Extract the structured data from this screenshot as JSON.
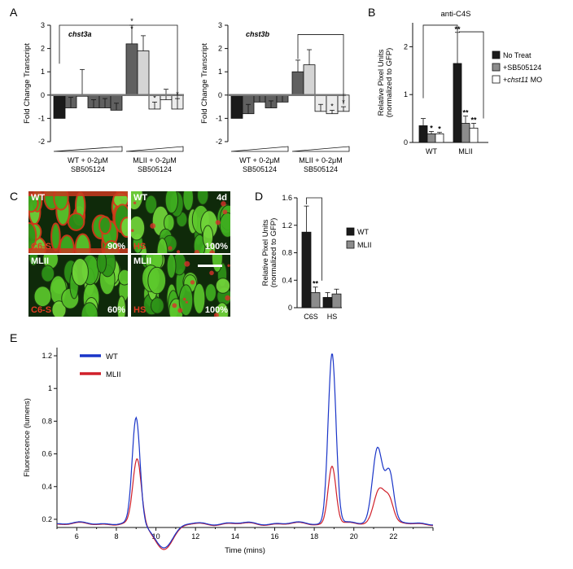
{
  "panel_letters": {
    "a": "A",
    "b": "B",
    "c": "C",
    "d": "D",
    "e": "E"
  },
  "colors": {
    "dark": "#1a1a1a",
    "mid": "#606060",
    "grey": "#8c8c8c",
    "light": "#d4d4d4",
    "lighter": "#ececec",
    "wt_line": "#1a35c8",
    "mlii_line": "#d0202a"
  },
  "chart_data": [
    {
      "id": "A1",
      "type": "bar",
      "title": "chst3a",
      "ylabel": "Fold Change Transcript",
      "ylim": [
        -2,
        3
      ],
      "yticks": [
        -2,
        -1,
        0,
        1,
        2,
        3
      ],
      "group_labels": [
        {
          "line1": "WT + 0-2μM",
          "line2": "SB505124"
        },
        {
          "line1": "MLII + 0-2μM",
          "line2": "SB505124"
        }
      ],
      "values": [
        -1.0,
        -0.55,
        -0.05,
        -0.55,
        -0.55,
        -0.65,
        2.2,
        1.9,
        -0.6,
        -0.2,
        -0.6
      ],
      "errors": [
        0,
        0.45,
        1.15,
        0.35,
        0.4,
        0.3,
        0.8,
        0.65,
        0.3,
        0.45,
        0.45
      ],
      "fills": [
        "dark",
        "mid",
        "mid",
        "mid",
        "mid",
        "mid",
        "mid",
        "light",
        "lighter",
        "lighter",
        "lighter"
      ],
      "annot": [
        "",
        "",
        "",
        "",
        "",
        "",
        "*",
        "",
        "*",
        "",
        "*"
      ]
    },
    {
      "id": "A2",
      "type": "bar",
      "title": "chst3b",
      "ylabel": "Fold Change Transcript",
      "ylim": [
        -2,
        3
      ],
      "yticks": [
        -2,
        -1,
        0,
        1,
        2,
        3
      ],
      "group_labels": [
        {
          "line1": "WT + 0-2μM",
          "line2": "SB505124"
        },
        {
          "line1": "MLII + 0-2μM",
          "line2": "SB505124"
        }
      ],
      "values": [
        -1.0,
        -0.8,
        -0.3,
        -0.55,
        -0.3,
        1.0,
        1.3,
        -0.7,
        -0.8,
        -0.7
      ],
      "errors": [
        0,
        0.4,
        0.3,
        0.3,
        0.3,
        0.5,
        0.65,
        0.3,
        0.15,
        0.2
      ],
      "fills": [
        "dark",
        "mid",
        "mid",
        "mid",
        "mid",
        "mid",
        "light",
        "lighter",
        "lighter",
        "lighter"
      ],
      "annot": [
        "",
        "",
        "",
        "",
        "",
        "",
        "",
        "",
        "*",
        "*"
      ]
    },
    {
      "id": "B",
      "type": "bar",
      "title": "anti-C4S",
      "ylabel": "Relative Pixel Units",
      "ylabel2": "(normalized to GFP)",
      "ylim": [
        0,
        2.5
      ],
      "yticks": [
        0,
        1,
        2
      ],
      "categories": [
        "WT",
        "MLII"
      ],
      "series": [
        {
          "name": "No Treat",
          "fill": "dark",
          "values": [
            0.35,
            1.65
          ],
          "errors": [
            0.15,
            0.65
          ]
        },
        {
          "name": "+SB505124",
          "fill": "grey",
          "values": [
            0.18,
            0.4
          ],
          "errors": [
            0.05,
            0.15
          ]
        },
        {
          "name": "+chst11 MO",
          "fill": "white",
          "values": [
            0.18,
            0.3
          ],
          "errors": [
            0.03,
            0.1
          ]
        }
      ],
      "annot": [
        [
          "",
          "*",
          "*"
        ],
        [
          "**",
          "**",
          "**"
        ]
      ]
    },
    {
      "id": "D",
      "type": "bar",
      "ylabel": "Relative Pixel Units",
      "ylabel2": "(normalized to GFP)",
      "ylim": [
        0,
        1.6
      ],
      "yticks": [
        "0",
        "0.4",
        "0.8",
        "1.2",
        "1.6"
      ],
      "categories": [
        "C6S",
        "HS"
      ],
      "series": [
        {
          "name": "WT",
          "fill": "dark",
          "values": [
            1.1,
            0.15
          ],
          "errors": [
            0.38,
            0.07
          ]
        },
        {
          "name": "MLII",
          "fill": "grey",
          "values": [
            0.22,
            0.2
          ],
          "errors": [
            0.08,
            0.07
          ]
        }
      ],
      "annot": [
        [
          "",
          "**"
        ],
        [
          "",
          ""
        ]
      ]
    },
    {
      "id": "E",
      "type": "line",
      "xlabel": "Time (mins)",
      "ylabel": "Fluorescence (lumens)",
      "xlim": [
        5,
        24
      ],
      "ylim": [
        0.15,
        1.25
      ],
      "xticks": [
        6,
        8,
        10,
        12,
        14,
        16,
        18,
        20,
        22
      ],
      "yticks": [
        "0.2",
        "0.4",
        "0.6",
        "0.8",
        "1",
        "1.2"
      ],
      "series": [
        {
          "name": "WT",
          "color": "wt_line",
          "baseline": 0.175,
          "peaks": [
            [
              9.0,
              0.82,
              0.28
            ],
            [
              10.4,
              0.035,
              0.7
            ],
            [
              18.9,
              1.22,
              0.28
            ],
            [
              21.2,
              0.64,
              0.36
            ],
            [
              21.8,
              0.48,
              0.3
            ]
          ]
        },
        {
          "name": "MLII",
          "color": "mlii_line",
          "baseline": 0.172,
          "peaks": [
            [
              9.05,
              0.57,
              0.3
            ],
            [
              10.4,
              0.025,
              0.7
            ],
            [
              18.9,
              0.53,
              0.28
            ],
            [
              21.3,
              0.39,
              0.4
            ],
            [
              21.8,
              0.3,
              0.3
            ]
          ]
        }
      ]
    }
  ],
  "micrographs": [
    {
      "label": "WT",
      "stain": "C6-S",
      "pct": "90%",
      "time": ""
    },
    {
      "label": "WT",
      "stain": "HS",
      "pct": "100%",
      "time": "4d"
    },
    {
      "label": "MLII",
      "stain": "C6-S",
      "pct": "60%",
      "time": ""
    },
    {
      "label": "MLII",
      "stain": "HS",
      "pct": "100%",
      "time": ""
    }
  ]
}
